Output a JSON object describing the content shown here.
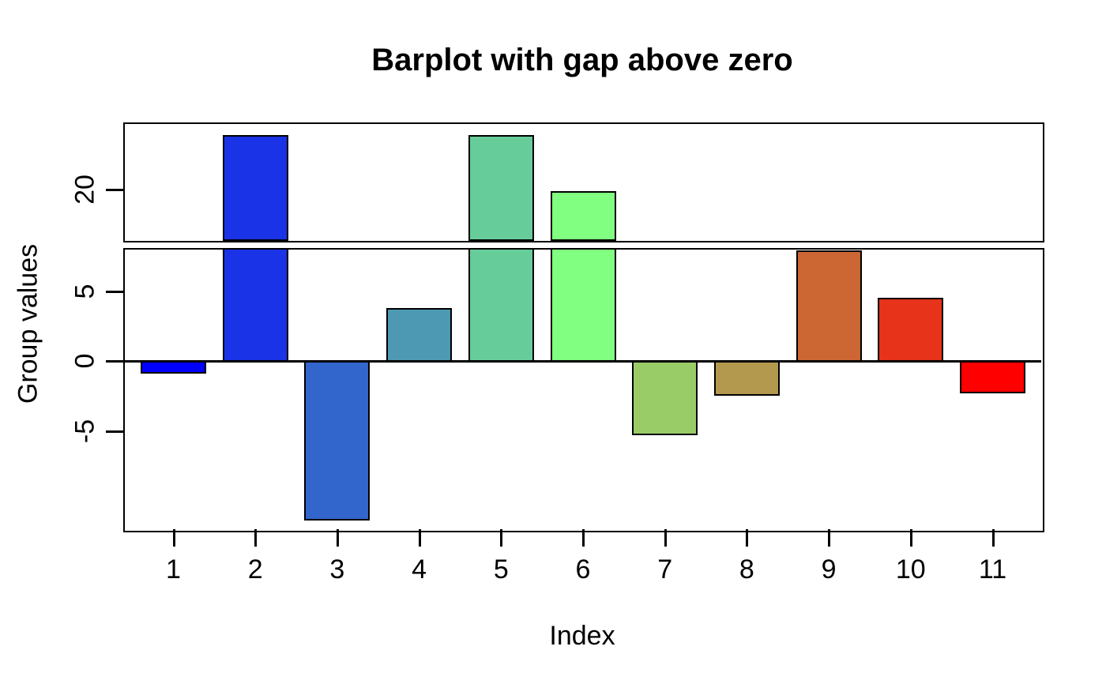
{
  "chart_data": {
    "type": "bar",
    "title": "Barplot with gap above zero",
    "xlabel": "Index",
    "ylabel": "Group values",
    "categories": [
      "1",
      "2",
      "3",
      "4",
      "5",
      "6",
      "7",
      "8",
      "9",
      "10",
      "11"
    ],
    "values": [
      -0.9,
      23.9,
      -11.4,
      3.8,
      23.9,
      19.9,
      -5.3,
      -2.5,
      7.9,
      4.5,
      -2.3
    ],
    "bar_colors": [
      "#0000FF",
      "#1A33E6",
      "#3366CC",
      "#4D99B3",
      "#66CC99",
      "#80FF80",
      "#99CC66",
      "#B3994D",
      "#CC6633",
      "#E63319",
      "#FF0000"
    ],
    "bar_border_color": "#000000",
    "axis_color": "#000000",
    "background_color": "#FFFFFF",
    "y_axis": {
      "upper_ticks": [
        {
          "label": "20",
          "value": 20
        }
      ],
      "lower_ticks": [
        {
          "label": "5",
          "value": 5
        },
        {
          "label": "0",
          "value": 0
        },
        {
          "label": "-5",
          "value": -5
        }
      ],
      "upper_panel_range": [
        16.5,
        24.8
      ],
      "lower_panel_range": [
        -11.9,
        8.1
      ],
      "gap_omitted_range": [
        8.1,
        16.5
      ]
    },
    "x_axis": {
      "tick_values": [
        1,
        2,
        3,
        4,
        5,
        6,
        7,
        8,
        9,
        10,
        11
      ]
    },
    "grid": false,
    "legend": null
  }
}
